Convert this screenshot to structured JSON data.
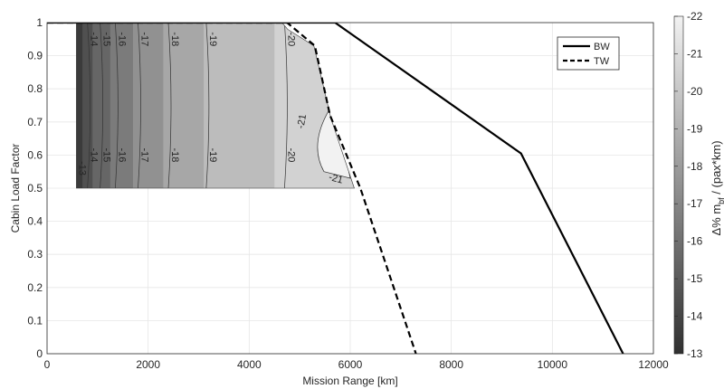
{
  "chart_data": {
    "type": "contour",
    "xlabel": "Mission Range [km]",
    "ylabel": "Cabin Load Factor",
    "xlim": [
      0,
      12000
    ],
    "ylim": [
      0,
      1
    ],
    "x_ticks": [
      "0",
      "2000",
      "4000",
      "6000",
      "8000",
      "10000",
      "12000"
    ],
    "y_ticks": [
      "0",
      "0.1",
      "0.2",
      "0.3",
      "0.4",
      "0.5",
      "0.6",
      "0.7",
      "0.8",
      "0.9",
      "1"
    ],
    "grid": true,
    "legend_position": "top-right",
    "series": [
      {
        "name": "BW",
        "style": "solid",
        "points": [
          [
            0,
            1.0
          ],
          [
            5700,
            1.0
          ],
          [
            9380,
            0.605
          ],
          [
            11400,
            0.0
          ]
        ]
      },
      {
        "name": "TW",
        "style": "dashed",
        "points": [
          [
            0,
            1.0
          ],
          [
            4750,
            1.0
          ],
          [
            5300,
            0.93
          ],
          [
            5600,
            0.72
          ],
          [
            6200,
            0.5
          ],
          [
            7300,
            0.0
          ]
        ]
      }
    ],
    "contour_region": {
      "boundary": [
        [
          580,
          1.0
        ],
        [
          4650,
          1.0
        ],
        [
          4760,
          0.98
        ],
        [
          5280,
          0.93
        ],
        [
          5620,
          0.71
        ],
        [
          6080,
          0.5
        ],
        [
          580,
          0.5
        ]
      ],
      "levels": [
        {
          "x_hi": 700,
          "value": -13.5
        },
        {
          "x_hi": 900,
          "value": -14.5
        },
        {
          "x_hi": 1250,
          "value": -15.5
        },
        {
          "x_hi": 1700,
          "value": -16.5
        },
        {
          "x_hi": 2300,
          "value": -17.5
        },
        {
          "x_hi": 3100,
          "value": -18.5
        },
        {
          "x_hi": 4500,
          "value": -19.5
        },
        {
          "x_hi": 7000,
          "value": -20.5
        }
      ],
      "lines": [
        {
          "label": "-14",
          "x": 800
        },
        {
          "label": "-15",
          "x": 1050
        },
        {
          "label": "-16",
          "x": 1350
        },
        {
          "label": "-17",
          "x": 1800
        },
        {
          "label": "-18",
          "x": 2400
        },
        {
          "label": "-19",
          "x": 3150
        },
        {
          "label": "-20",
          "x": 4700
        }
      ],
      "extra_labels": [
        "-13",
        "-21",
        "-21"
      ]
    },
    "colorbar": {
      "label": "Δ% m_bf / (pax*km)",
      "label_main": "Δ% m",
      "label_sub": "bf",
      "label_tail": " / (pax*km)",
      "range": [
        -22,
        -13
      ],
      "ticks": [
        "-22",
        "-21",
        "-20",
        "-19",
        "-18",
        "-17",
        "-16",
        "-15",
        "-14",
        "-13"
      ]
    }
  }
}
